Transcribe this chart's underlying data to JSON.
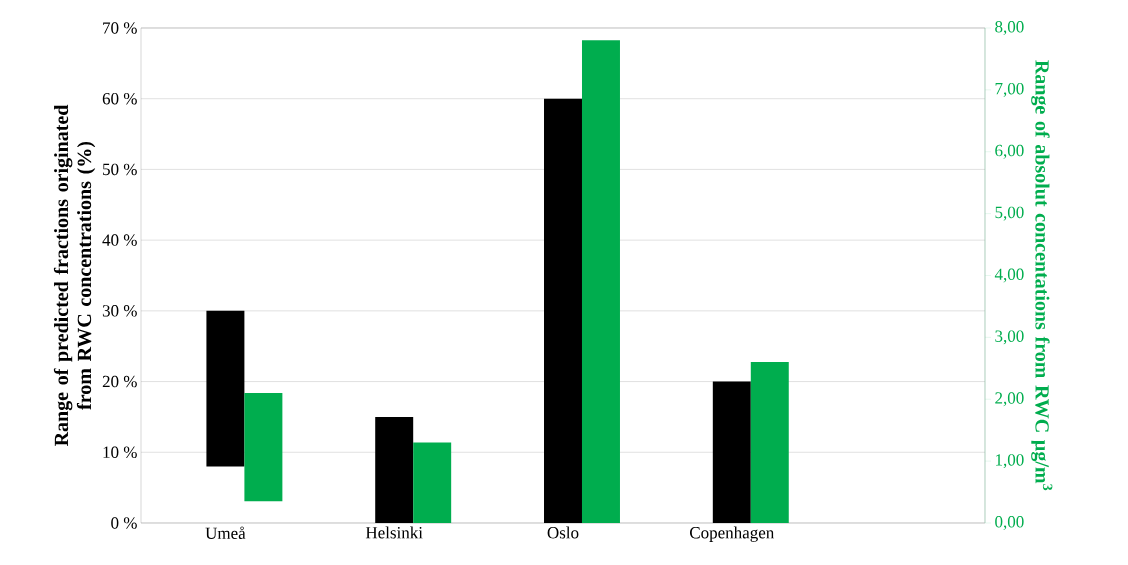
{
  "chart_data": {
    "type": "bar",
    "categories": [
      "Umeå",
      "Helsinki",
      "Oslo",
      "Copenhagen",
      null
    ],
    "series": [
      {
        "color": "#000000",
        "values": [
          22,
          15,
          60,
          20,
          null
        ],
        "base": [
          8,
          0,
          0,
          0,
          null
        ]
      },
      {
        "color": "#00ad4e",
        "axis": "y2",
        "values": [
          1.75,
          1.3,
          7.8,
          2.6,
          null
        ],
        "base": [
          0.35,
          0,
          0,
          0,
          null
        ]
      }
    ],
    "ylabel": "Range of predicted fractions originated from RWC concentrations (%)",
    "y2label": "Range of absolut concentations from RWC µg/m$^{3}$",
    "ylim": [
      0,
      70
    ],
    "yticks": [
      {
        "value": 0,
        "label": "0 %"
      },
      {
        "value": 10,
        "label": "10 %"
      },
      {
        "value": 20,
        "label": "20 %"
      },
      {
        "value": 30,
        "label": "30 %"
      },
      {
        "value": 40,
        "label": "40 %"
      },
      {
        "value": 50,
        "label": "50 %"
      },
      {
        "value": 60,
        "label": "60 %"
      },
      {
        "value": 70,
        "label": "70 %"
      }
    ],
    "y2lim": [
      0,
      8
    ],
    "y2ticks": [
      {
        "value": 0,
        "label": "0,00"
      },
      {
        "value": 1,
        "label": "1,00"
      },
      {
        "value": 2,
        "label": "2,00"
      },
      {
        "value": 3,
        "label": "3,00"
      },
      {
        "value": 4,
        "label": "4,00"
      },
      {
        "value": 5,
        "label": "5,00"
      },
      {
        "value": 6,
        "label": "6,00"
      },
      {
        "value": 7,
        "label": "7,00"
      },
      {
        "value": 8,
        "label": "8,00"
      }
    ],
    "grid": "y"
  }
}
